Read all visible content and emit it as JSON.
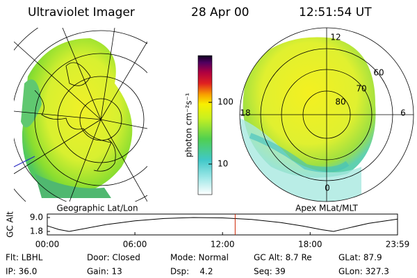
{
  "header": {
    "instrument": "Ultraviolet Imager",
    "date": "28 Apr 00",
    "time": "12:51:54 UT"
  },
  "left_panel": {
    "caption": "Geographic Lat/Lon"
  },
  "colorbar": {
    "label": "photon cm⁻²s⁻¹",
    "scale": "log",
    "range": [
      3.2,
      570
    ],
    "ticks": [
      10,
      100
    ]
  },
  "right_panel": {
    "caption": "Apex MLat/MLT",
    "mlt_labels": [
      "12",
      "18",
      "6",
      "0"
    ],
    "mlat_labels": [
      "60",
      "70",
      "80"
    ]
  },
  "altitude_plot": {
    "ylabel": "GC Alt",
    "ylim": [
      1.8,
      9.0
    ],
    "yticks": [
      {
        "value": 9.0,
        "label": "9.0"
      },
      {
        "value": 1.8,
        "label": "1.8"
      }
    ],
    "xlim": [
      0,
      23.983
    ],
    "xticks": [
      {
        "value": 0,
        "label": "00:00"
      },
      {
        "value": 6,
        "label": "06:00"
      },
      {
        "value": 12,
        "label": "12:00"
      },
      {
        "value": 18,
        "label": "18:00"
      },
      {
        "value": 23.983,
        "label": "23:59"
      }
    ],
    "x": [
      0,
      0.8,
      1.5,
      2.5,
      4,
      6,
      8,
      10,
      12,
      14,
      16,
      17.5,
      18.8,
      19.6,
      20.5,
      22,
      23.983
    ],
    "values": [
      4.7,
      2.8,
      1.8,
      3.2,
      5.3,
      7.3,
      8.5,
      9.0,
      8.8,
      8.0,
      6.4,
      4.6,
      2.7,
      1.8,
      3.4,
      6.0,
      8.2
    ],
    "marker_x": 12.865,
    "marker_color": "#cc2200"
  },
  "status": [
    [
      "Flt: LBHL",
      "Door: Closed",
      "Mode: Normal",
      "GC Alt: 8.7 Re",
      "GLat: 87.9"
    ],
    [
      "IP: 36.0",
      "Gain: 13",
      "Dsp:    4.2",
      "Seq: 39",
      "GLon: 327.3"
    ]
  ]
}
